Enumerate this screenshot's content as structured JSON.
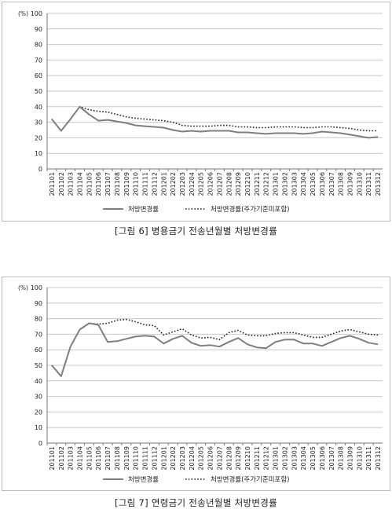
{
  "captions": [
    "[그림 6] 병용금기 전송년월별 처방변경률",
    "[그림 7] 연령금기 전송년월별 처방변경률"
  ],
  "chart_data": [
    {
      "type": "line",
      "title": "[그림 6] 병용금기 전송년월별 처방변경률",
      "ylabel": "(%)",
      "ylim": [
        0,
        100
      ],
      "yticks": [
        0,
        10,
        20,
        30,
        40,
        50,
        60,
        70,
        80,
        90,
        100
      ],
      "grid": true,
      "legend": "bottom",
      "categories": [
        "201101",
        "201102",
        "201103",
        "201104",
        "201105",
        "201106",
        "201107",
        "201108",
        "201109",
        "201110",
        "201111",
        "201112",
        "201201",
        "201202",
        "201203",
        "201204",
        "201205",
        "201206",
        "201207",
        "201208",
        "201209",
        "201210",
        "201211",
        "201212",
        "201301",
        "201302",
        "201303",
        "201304",
        "201305",
        "201306",
        "201307",
        "201308",
        "201309",
        "201310",
        "201311",
        "201312"
      ],
      "series": [
        {
          "name": "처방변경률",
          "style": "solid",
          "color": "#7f7f7f",
          "values": [
            32,
            24.5,
            32,
            40,
            35,
            31,
            31.5,
            30.5,
            29.5,
            28,
            27.5,
            27,
            26.5,
            25,
            24,
            24.5,
            24,
            24.5,
            24.5,
            24.5,
            23.5,
            23.5,
            23,
            22.5,
            23,
            23,
            23,
            22.5,
            23,
            24,
            23.5,
            23,
            22,
            21,
            20,
            20.5
          ]
        },
        {
          "name": "처방변경률(주가기준미포함)",
          "style": "dotted",
          "color": "#222222",
          "values": [
            32,
            24.5,
            32,
            40,
            38,
            37,
            36.5,
            35,
            33.5,
            32.5,
            32,
            31.5,
            31,
            30,
            28,
            27.5,
            27.5,
            27.5,
            28,
            28,
            27,
            27,
            26.5,
            26.5,
            27,
            27,
            27,
            26.5,
            26.5,
            27,
            27,
            26.5,
            26,
            25,
            24.5,
            24.5
          ]
        }
      ]
    },
    {
      "type": "line",
      "title": "[그림 7] 연령금기 전송년월별 처방변경률",
      "ylabel": "(%)",
      "ylim": [
        0,
        100
      ],
      "yticks": [
        0,
        10,
        20,
        30,
        40,
        50,
        60,
        70,
        80,
        90,
        100
      ],
      "grid": true,
      "legend": "bottom",
      "categories": [
        "201101",
        "201102",
        "201103",
        "201104",
        "201105",
        "201106",
        "201107",
        "201108",
        "201109",
        "201110",
        "201111",
        "201112",
        "201201",
        "201202",
        "201203",
        "201204",
        "201205",
        "201206",
        "201207",
        "201208",
        "201209",
        "201210",
        "201211",
        "201212",
        "201301",
        "201302",
        "201303",
        "201304",
        "201305",
        "201306",
        "201307",
        "201308",
        "201309",
        "201310",
        "201311",
        "201312"
      ],
      "series": [
        {
          "name": "처방변경률",
          "style": "solid",
          "color": "#7f7f7f",
          "values": [
            50,
            43,
            62,
            73,
            77,
            76,
            65,
            65.5,
            67,
            68.5,
            69,
            68.5,
            64,
            67,
            69,
            64.5,
            62.5,
            63,
            62,
            65,
            67.5,
            63.5,
            61.5,
            61,
            65,
            66.5,
            66.5,
            64,
            64,
            62.5,
            65,
            67.5,
            69,
            67,
            64.5,
            63.5
          ]
        },
        {
          "name": "처방변경률(주가기준미포함)",
          "style": "dotted",
          "color": "#222222",
          "values": [
            50,
            43,
            62,
            73,
            77,
            76.5,
            77,
            79,
            79.5,
            78,
            76,
            75.5,
            69.5,
            71.5,
            73.5,
            69.5,
            67.5,
            68,
            66.5,
            71,
            72.5,
            69.5,
            69,
            69,
            70.5,
            71,
            71,
            69.5,
            68,
            68,
            70,
            72,
            73,
            71.5,
            70,
            69.5
          ]
        }
      ]
    }
  ]
}
